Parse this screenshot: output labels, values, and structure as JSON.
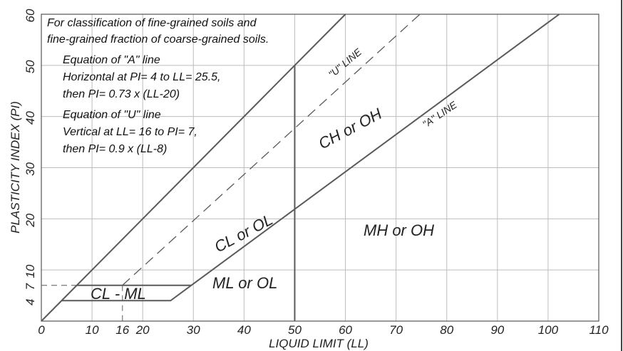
{
  "chart_data": {
    "type": "line",
    "xlabel": "LIQUID LIMIT (LL)",
    "ylabel": "PLASTICITY INDEX (PI)",
    "xlim": [
      0,
      110
    ],
    "ylim": [
      0,
      60
    ],
    "x_ticks": [
      "0",
      "10",
      "16",
      "20",
      "30",
      "40",
      "50",
      "60",
      "70",
      "80",
      "90",
      "100",
      "110"
    ],
    "y_ticks": [
      "4",
      "7",
      "10",
      "20",
      "30",
      "40",
      "50",
      "60"
    ],
    "x_tick_values": [
      0,
      10,
      16,
      20,
      30,
      40,
      50,
      60,
      70,
      80,
      90,
      100,
      110
    ],
    "y_tick_values": [
      4,
      7,
      10,
      20,
      30,
      40,
      50,
      60
    ],
    "grid": true,
    "notes": [
      "For classification of fine-grained soils and",
      "fine-grained fraction of coarse-grained soils.",
      "Equation of \"A\" line",
      "Horizontal at PI= 4 to LL= 25.5,",
      "then PI= 0.73 x (LL-20)",
      "Equation of \"U\" line",
      "Vertical at LL= 16 to PI= 7,",
      "then PI= 0.9 x (LL-8)"
    ],
    "series": [
      {
        "name": "\"A\" LINE",
        "style": "solid",
        "x": [
          4,
          25.5,
          102.2
        ],
        "y": [
          4,
          4,
          60
        ]
      },
      {
        "name": "\"U\" LINE",
        "style": "dashed",
        "x": [
          16,
          16,
          74.7
        ],
        "y": [
          0,
          7,
          60
        ]
      }
    ],
    "regions": [
      {
        "label": "CL - ML",
        "x": 12,
        "y": 5.5
      },
      {
        "label": "ML or OL",
        "x": 41,
        "y": 8.5
      },
      {
        "label": "CL or OL",
        "x": 37,
        "y": 18
      },
      {
        "label": "CH or OH",
        "x": 57,
        "y": 37.5
      },
      {
        "label": "MH or OH",
        "x": 77,
        "y": 19.5
      }
    ],
    "colors": {
      "lines": "#5a5a5a",
      "grid": "#bdbdbd",
      "text": "#222222",
      "background": "#ffffff"
    }
  }
}
